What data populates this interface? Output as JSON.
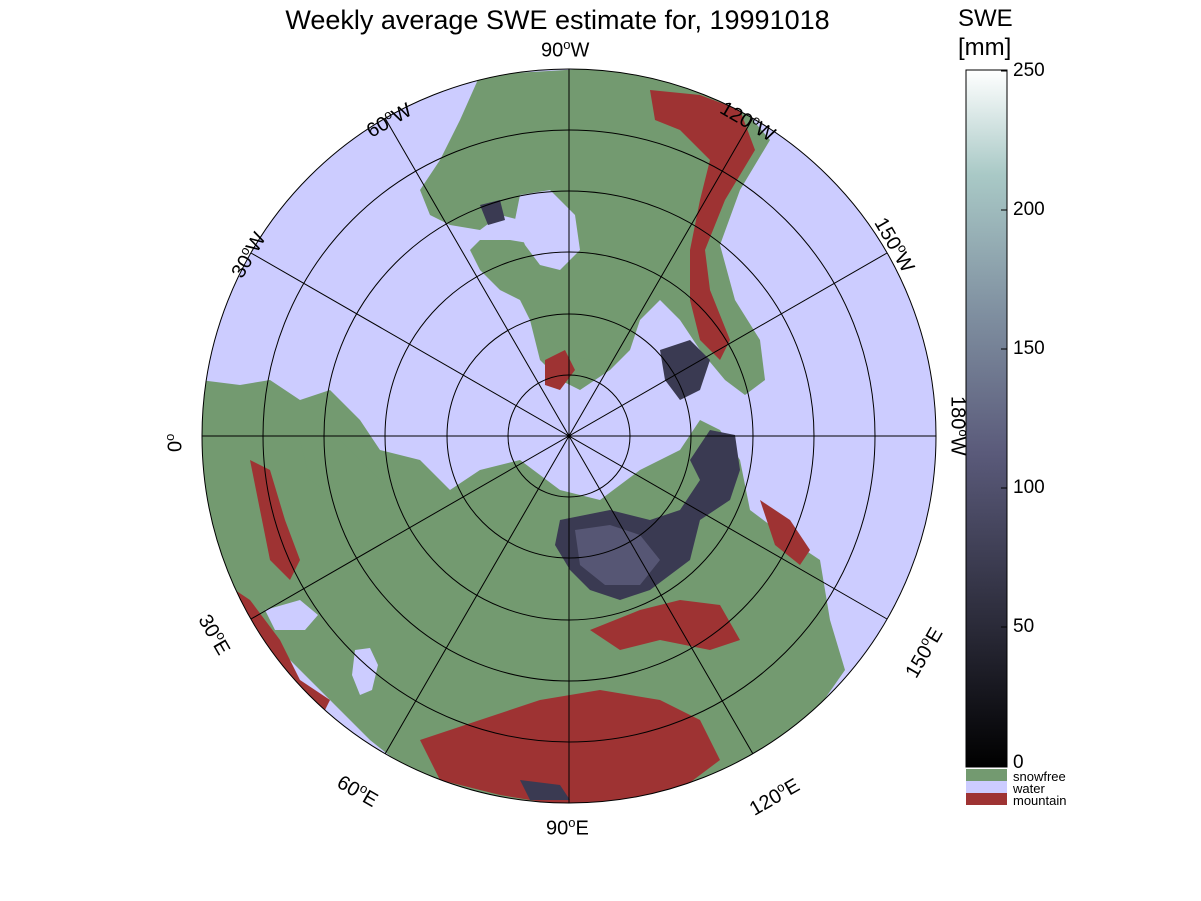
{
  "title": "Weekly average SWE estimate for, 19991018",
  "map_labels": {
    "lon_90W": "90",
    "lon_120W": "120",
    "lon_150W": "150",
    "lon_180W": "180",
    "lon_150E": "150",
    "lon_120E": "120",
    "lon_90E": "90",
    "lon_60E": "60",
    "lon_30E": "30",
    "lon_0": "0",
    "lon_30W": "30",
    "lon_60W": "60",
    "deg": "o",
    "W": "W",
    "E": "E"
  },
  "colorbar": {
    "title_line1": "SWE",
    "title_line2": "[mm]",
    "ticks": [
      "250",
      "200",
      "150",
      "100",
      "50",
      "0"
    ],
    "categories": [
      {
        "label": "snowfree",
        "color": "#739a70"
      },
      {
        "label": "water",
        "color": "#ccccff"
      },
      {
        "label": "mountain",
        "color": "#9e3333"
      }
    ]
  },
  "colors": {
    "ocean": "#ccccff",
    "land": "#739a70",
    "mountain": "#9e3333",
    "snow_low": "#2d2d3f",
    "snow_mid": "#5c5c7a"
  }
}
